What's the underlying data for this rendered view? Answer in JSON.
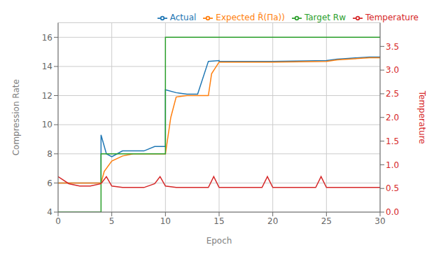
{
  "chart_data": {
    "type": "line",
    "title": "",
    "xlabel": "Epoch",
    "ylabel": "Compression Rate",
    "y2label": "Temperature",
    "xlim": [
      0,
      30
    ],
    "xticks": [
      0,
      5,
      10,
      15,
      20,
      25,
      30
    ],
    "ylim": [
      4,
      17.0
    ],
    "yticks": [
      4,
      6,
      8,
      10,
      12,
      14,
      16
    ],
    "y2lim": [
      0.0,
      4.0
    ],
    "y2ticks": [
      {
        "value": 0.0,
        "label": "0.0"
      },
      {
        "value": 0.5,
        "label": "0.5"
      },
      {
        "value": 1.0,
        "label": "1.0"
      },
      {
        "value": 1.5,
        "label": "1.5"
      },
      {
        "value": 2.0,
        "label": "2.0"
      },
      {
        "value": 2.5,
        "label": "2.5"
      },
      {
        "value": 3.0,
        "label": "3.0"
      },
      {
        "value": 3.5,
        "label": "3.5"
      }
    ],
    "grid": true,
    "legend": "upper right",
    "series": [
      {
        "name": "Actual",
        "color": "#1f77b4",
        "axis": "y",
        "x": [
          0,
          4,
          4,
          4.5,
          5,
          5.5,
          6,
          7,
          8,
          9,
          10,
          10,
          11,
          12,
          13,
          14,
          15,
          15,
          20,
          25,
          26,
          27,
          28,
          29,
          30
        ],
        "values": [
          6.0,
          6.0,
          9.3,
          8.0,
          7.8,
          8.0,
          8.2,
          8.2,
          8.2,
          8.5,
          8.5,
          12.4,
          12.2,
          12.1,
          12.1,
          14.35,
          14.4,
          14.35,
          14.35,
          14.4,
          14.5,
          14.55,
          14.6,
          14.65,
          14.65
        ]
      },
      {
        "name": "Expected R̄(Πa))",
        "color": "#ff7f0e",
        "axis": "y",
        "x": [
          0,
          4,
          4.3,
          5,
          6,
          7,
          8,
          9,
          9.5,
          10,
          10.5,
          11,
          12,
          13,
          14,
          14.3,
          15,
          20,
          25,
          26,
          29,
          30
        ],
        "values": [
          6.0,
          6.0,
          6.8,
          7.5,
          7.85,
          8.0,
          8.0,
          8.0,
          8.0,
          8.0,
          10.5,
          11.9,
          12.0,
          12.0,
          12.0,
          13.5,
          14.3,
          14.3,
          14.35,
          14.45,
          14.6,
          14.6
        ]
      },
      {
        "name": "Target Rw",
        "color": "#2ca02c",
        "axis": "y",
        "x": [
          0,
          4,
          4,
          10,
          10,
          15,
          15,
          30
        ],
        "values": [
          4.0,
          4.0,
          8.0,
          8.0,
          16.0,
          16.0,
          16.0,
          16.0
        ]
      },
      {
        "name": "Temperature",
        "color": "#d62728",
        "axis": "y2",
        "x": [
          0,
          1,
          2,
          3,
          4,
          4.5,
          5,
          6,
          7,
          8,
          9,
          9.5,
          10,
          11,
          12,
          13,
          14,
          14.5,
          15,
          16,
          17,
          18,
          19,
          19.5,
          20,
          21,
          22,
          23,
          24,
          24.5,
          25,
          26,
          27,
          28,
          29,
          30
        ],
        "values": [
          0.75,
          0.6,
          0.55,
          0.55,
          0.6,
          0.75,
          0.55,
          0.52,
          0.52,
          0.52,
          0.6,
          0.75,
          0.55,
          0.52,
          0.52,
          0.52,
          0.52,
          0.75,
          0.52,
          0.52,
          0.52,
          0.52,
          0.52,
          0.75,
          0.52,
          0.52,
          0.52,
          0.52,
          0.52,
          0.75,
          0.52,
          0.52,
          0.52,
          0.52,
          0.52,
          0.52
        ]
      }
    ]
  }
}
